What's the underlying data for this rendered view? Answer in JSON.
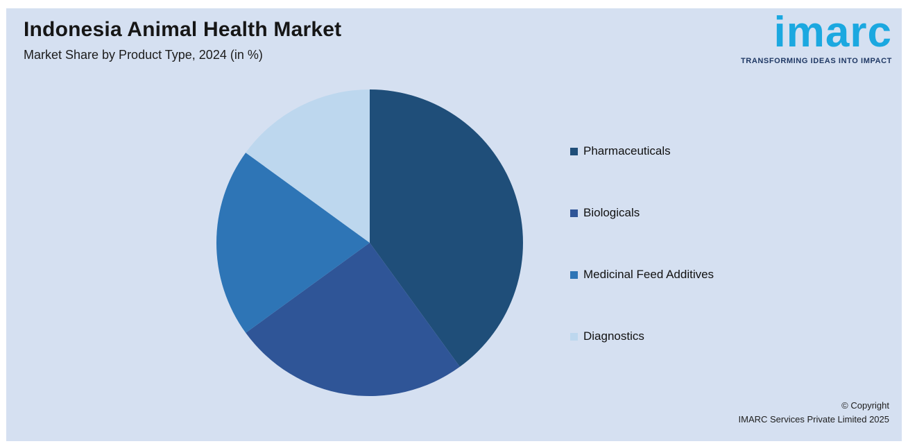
{
  "header": {
    "title": "Indonesia Animal Health Market",
    "subtitle": "Market Share by Product Type, 2024 (in %)"
  },
  "logo": {
    "wordmark": "imarc",
    "tagline": "TRANSFORMING IDEAS INTO IMPACT"
  },
  "footer": {
    "copyright_line1": "© Copyright",
    "copyright_line2": "IMARC Services Private Limited 2025"
  },
  "colors": {
    "page_background": "#D5E0F1",
    "frame_background": "#FFFFFF",
    "title_text": "#161616",
    "logo_blue": "#1BA8E0",
    "logo_tagline_navy": "#1F3864"
  },
  "chart_data": {
    "type": "pie",
    "title": "Market Share by Product Type, 2024 (in %)",
    "start_angle_deg": 0,
    "direction": "clockwise",
    "legend_position": "right",
    "data_labels_visible": false,
    "slices": [
      {
        "label": "Pharmaceuticals",
        "value": 40,
        "color": "#1F4E79"
      },
      {
        "label": "Biologicals",
        "value": 25,
        "color": "#2F5597"
      },
      {
        "label": "Medicinal Feed Additives",
        "value": 20,
        "color": "#2E75B6"
      },
      {
        "label": "Diagnostics",
        "value": 15,
        "color": "#BDD7EE"
      }
    ]
  }
}
